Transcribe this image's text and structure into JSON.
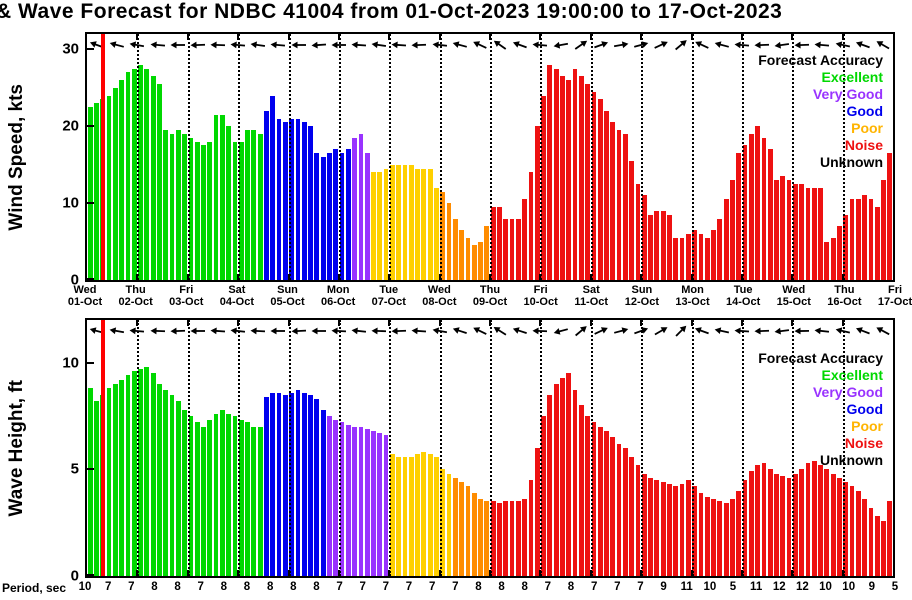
{
  "title": "& Wave Forecast for NDBC 41004 from 01-Oct-2023 19:00:00 to 17-Oct-2023",
  "colors": {
    "excellent": "#00d800",
    "very_good": "#9933ff",
    "good": "#0000ee",
    "poor": "#ffd000",
    "poor_orange": "#ff8c00",
    "noise": "#ee1111",
    "unknown": "#000000",
    "now_line": "#ff0000"
  },
  "chart_data": {
    "type": "bar",
    "title": "& Wave Forecast for NDBC 41004 from 01-Oct-2023 19:00:00 to 17-Oct-2023",
    "grid": "dotted vertical line at each day boundary",
    "red_line_index": 2,
    "accuracy_legend": {
      "title": "Forecast Accuracy",
      "entries": [
        {
          "label": "Excellent",
          "color": "#00d800"
        },
        {
          "label": "Very Good",
          "color": "#9933ff"
        },
        {
          "label": "Good",
          "color": "#0000ee"
        },
        {
          "label": "Poor",
          "color": "#ffb400"
        },
        {
          "label": "Noise",
          "color": "#ee1111"
        },
        {
          "label": "Unknown",
          "color": "#000000"
        }
      ]
    },
    "x_day_labels": [
      {
        "weekday": "Wed",
        "date": "01-Oct"
      },
      {
        "weekday": "Thu",
        "date": "02-Oct"
      },
      {
        "weekday": "Fri",
        "date": "03-Oct"
      },
      {
        "weekday": "Sat",
        "date": "04-Oct"
      },
      {
        "weekday": "Sun",
        "date": "05-Oct"
      },
      {
        "weekday": "Mon",
        "date": "06-Oct"
      },
      {
        "weekday": "Tue",
        "date": "07-Oct"
      },
      {
        "weekday": "Wed",
        "date": "08-Oct"
      },
      {
        "weekday": "Thu",
        "date": "09-Oct"
      },
      {
        "weekday": "Fri",
        "date": "10-Oct"
      },
      {
        "weekday": "Sat",
        "date": "11-Oct"
      },
      {
        "weekday": "Sun",
        "date": "12-Oct"
      },
      {
        "weekday": "Mon",
        "date": "13-Oct"
      },
      {
        "weekday": "Tue",
        "date": "14-Oct"
      },
      {
        "weekday": "Wed",
        "date": "15-Oct"
      },
      {
        "weekday": "Thu",
        "date": "16-Oct"
      },
      {
        "weekday": "Fri",
        "date": "17-Oct"
      }
    ],
    "panels": [
      {
        "name": "wind",
        "ylabel": "Wind Speed, kts",
        "ylim": [
          0,
          32
        ],
        "yticks": [
          0,
          10,
          20,
          30
        ],
        "values": [
          22.5,
          23,
          23.5,
          24,
          25,
          26,
          27,
          27.5,
          28,
          27.5,
          26.5,
          25.5,
          19.5,
          19,
          19.5,
          19,
          18.5,
          18,
          17.5,
          18,
          21.5,
          21.5,
          20,
          18,
          18,
          19.5,
          19.5,
          19,
          22,
          24,
          21,
          20.5,
          21,
          21,
          20.5,
          20,
          16.5,
          16,
          16.5,
          17,
          16.5,
          17,
          18.5,
          19,
          16.5,
          14,
          14,
          14.5,
          15,
          15,
          15,
          15,
          14.5,
          14.5,
          14.5,
          12,
          11.5,
          10,
          8,
          6.5,
          5.5,
          4.5,
          5,
          7,
          9.5,
          9.5,
          8,
          8,
          8,
          10.5,
          14,
          20,
          24,
          28,
          27.5,
          26.5,
          26,
          27.5,
          26.5,
          25.5,
          24.5,
          23.5,
          22,
          20.5,
          19.5,
          19,
          15.5,
          12.5,
          11,
          8.5,
          9,
          9,
          8.5,
          5.5,
          5.5,
          6,
          6.5,
          6,
          5.5,
          6.5,
          8,
          10.5,
          13,
          16.5,
          17.5,
          19,
          20,
          18.5,
          17,
          13,
          13.5,
          13,
          12.5,
          12.5,
          12,
          12,
          12,
          5,
          5.5,
          7,
          8.5,
          10.5,
          10.5,
          11,
          10.5,
          9.5,
          13,
          16.5
        ],
        "accuracy_segments": [
          [
            0,
            27,
            "excellent"
          ],
          [
            28,
            41,
            "good"
          ],
          [
            42,
            44,
            "very_good"
          ],
          [
            45,
            55,
            "poor"
          ],
          [
            56,
            63,
            "poor_orange"
          ],
          [
            64,
            127,
            "noise"
          ]
        ],
        "direction_arrow_angles_deg": [
          200,
          195,
          190,
          185,
          180,
          178,
          182,
          185,
          188,
          185,
          180,
          176,
          180,
          184,
          188,
          184,
          178,
          186,
          195,
          205,
          215,
          200,
          185,
          170,
          -35,
          -20,
          -10,
          -15,
          -25,
          -40,
          205,
          195,
          185,
          178,
          172,
          178,
          185,
          192,
          200,
          210
        ]
      },
      {
        "name": "wave",
        "ylabel": "Wave Height, ft",
        "ylim": [
          0,
          12
        ],
        "yticks": [
          0,
          5,
          10
        ],
        "values": [
          8.8,
          8.2,
          8.5,
          8.8,
          9.0,
          9.2,
          9.4,
          9.6,
          9.7,
          9.8,
          9.5,
          9.0,
          8.7,
          8.5,
          8.2,
          7.8,
          7.5,
          7.2,
          7.0,
          7.3,
          7.6,
          7.8,
          7.6,
          7.5,
          7.3,
          7.2,
          7.0,
          7.0,
          8.4,
          8.6,
          8.6,
          8.5,
          8.6,
          8.7,
          8.6,
          8.5,
          8.3,
          7.8,
          7.5,
          7.3,
          7.2,
          7.1,
          7.0,
          7.0,
          6.9,
          6.8,
          6.7,
          6.6,
          5.7,
          5.6,
          5.6,
          5.6,
          5.7,
          5.8,
          5.7,
          5.6,
          5.0,
          4.8,
          4.6,
          4.4,
          4.2,
          3.9,
          3.6,
          3.5,
          3.5,
          3.4,
          3.5,
          3.5,
          3.5,
          3.6,
          4.5,
          6.0,
          7.5,
          8.5,
          9.0,
          9.3,
          9.5,
          8.7,
          8.0,
          7.5,
          7.2,
          7.0,
          6.8,
          6.5,
          6.2,
          6.0,
          5.6,
          5.2,
          4.8,
          4.6,
          4.5,
          4.4,
          4.3,
          4.2,
          4.3,
          4.5,
          4.2,
          3.9,
          3.7,
          3.6,
          3.5,
          3.4,
          3.6,
          4.0,
          4.5,
          4.9,
          5.2,
          5.3,
          5.0,
          4.8,
          4.7,
          4.6,
          4.8,
          5.0,
          5.3,
          5.4,
          5.2,
          5.0,
          4.8,
          4.6,
          4.4,
          4.2,
          4.0,
          3.6,
          3.2,
          2.8,
          2.6,
          3.5
        ],
        "accuracy_segments": [
          [
            0,
            27,
            "excellent"
          ],
          [
            28,
            37,
            "good"
          ],
          [
            38,
            47,
            "very_good"
          ],
          [
            48,
            57,
            "poor"
          ],
          [
            58,
            63,
            "poor_orange"
          ],
          [
            64,
            127,
            "noise"
          ]
        ],
        "direction_arrow_angles_deg": [
          195,
          190,
          185,
          182,
          178,
          180,
          184,
          186,
          183,
          180,
          177,
          180,
          183,
          186,
          182,
          178,
          184,
          190,
          198,
          206,
          212,
          198,
          182,
          165,
          -40,
          -25,
          -15,
          -20,
          -30,
          -45,
          200,
          192,
          184,
          178,
          173,
          179,
          186,
          193,
          201,
          208
        ]
      }
    ],
    "period_sec": {
      "label": "Period, sec",
      "values": [
        10,
        7,
        7,
        8,
        8,
        7,
        8,
        8,
        8,
        8,
        8,
        7,
        7,
        7,
        7,
        7,
        7,
        8,
        8,
        8,
        7,
        8,
        7,
        7,
        7,
        9,
        11,
        10,
        5,
        11,
        12,
        12,
        10,
        10,
        9,
        5
      ]
    }
  }
}
